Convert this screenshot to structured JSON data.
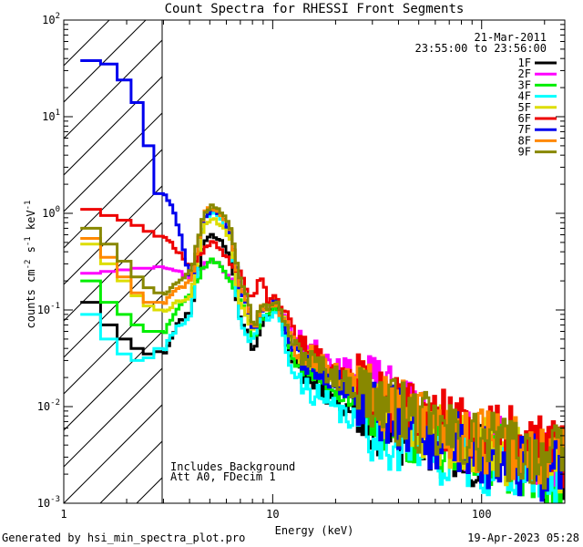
{
  "title": "Count Spectra for RHESSI Front Segments",
  "date": "21-Mar-2011",
  "time_range": "23:55:00 to 23:56:00",
  "note_line1": "Includes Background",
  "note_line2": "Att A0, FDecim 1",
  "footer_left": "Generated by hsi_min_spectra_plot.pro",
  "footer_right": "19-Apr-2023 05:28",
  "chart_data": {
    "type": "line",
    "title": "Count Spectra for RHESSI Front Segments",
    "xlabel": "Energy (keV)",
    "ylabel": "counts cm-2 s-1 keV-1",
    "xscale": "log",
    "yscale": "log",
    "xlim": [
      1,
      250
    ],
    "ylim": [
      0.001,
      100
    ],
    "x_ticks": [
      {
        "v": 1,
        "t": "1"
      },
      {
        "v": 10,
        "t": "10"
      },
      {
        "v": 100,
        "t": "100"
      }
    ],
    "y_ticks": [
      {
        "v": 0.001,
        "b": "10",
        "e": "-3"
      },
      {
        "v": 0.01,
        "b": "10",
        "e": "-2"
      },
      {
        "v": 0.1,
        "b": "10",
        "e": "-1"
      },
      {
        "v": 1,
        "b": "10",
        "e": "0"
      },
      {
        "v": 10,
        "b": "10",
        "e": "1"
      },
      {
        "v": 100,
        "b": "10",
        "e": "2"
      }
    ],
    "excluded_region_kev": [
      1,
      3
    ],
    "legend_position": "top-right",
    "series": [
      {
        "name": "1F",
        "color": "#000000",
        "low": [
          0.12,
          0.07,
          0.05,
          0.04,
          0.035,
          0.037
        ],
        "peak": 0.6,
        "base": 0.1,
        "dip": 0.035,
        "l2": 0.12,
        "tail": [
          0.025,
          0.012,
          0.006,
          0.004,
          0.003,
          0.002
        ],
        "seed": 11
      },
      {
        "name": "2F",
        "color": "#ff00ff",
        "low": [
          0.24,
          0.25,
          0.26,
          0.27,
          0.27,
          0.28
        ],
        "peak": 0.34,
        "base": 0.22,
        "dip": 0.06,
        "l2": 0.13,
        "tail": [
          0.05,
          0.028,
          0.012,
          0.006,
          0.004,
          0.003
        ],
        "seed": 23
      },
      {
        "name": "3F",
        "color": "#00ee00",
        "low": [
          0.2,
          0.12,
          0.09,
          0.07,
          0.06,
          0.06
        ],
        "peak": 0.33,
        "base": 0.15,
        "dip": 0.045,
        "l2": 0.11,
        "tail": [
          0.03,
          0.015,
          0.007,
          0.004,
          0.003,
          0.002
        ],
        "seed": 37
      },
      {
        "name": "4F",
        "color": "#00ffff",
        "low": [
          0.09,
          0.05,
          0.035,
          0.03,
          0.032,
          0.04
        ],
        "peak": 1.0,
        "base": 0.09,
        "dip": 0.05,
        "l2": 0.1,
        "tail": [
          0.02,
          0.009,
          0.005,
          0.0035,
          0.0025,
          0.002
        ],
        "seed": 41
      },
      {
        "name": "5F",
        "color": "#dddd00",
        "low": [
          0.48,
          0.3,
          0.2,
          0.14,
          0.11,
          0.1
        ],
        "peak": 0.9,
        "base": 0.14,
        "dip": 0.06,
        "l2": 0.14,
        "tail": [
          0.04,
          0.02,
          0.009,
          0.005,
          0.0035,
          0.0025
        ],
        "seed": 53
      },
      {
        "name": "6F",
        "color": "#ee0000",
        "low": [
          1.1,
          0.95,
          0.85,
          0.75,
          0.65,
          0.58
        ],
        "peak": 0.5,
        "base": 0.28,
        "dip": 0.13,
        "l2": 0.15,
        "tail": [
          0.06,
          0.022,
          0.01,
          0.007,
          0.005,
          0.003
        ],
        "seed": 67
      },
      {
        "name": "7F",
        "color": "#0000ee",
        "low": [
          38,
          35,
          24,
          14,
          5,
          1.6
        ],
        "peak": 1.1,
        "base": 0.2,
        "dip": 0.055,
        "l2": 0.13,
        "tail": [
          0.035,
          0.018,
          0.008,
          0.0045,
          0.003,
          0.002
        ],
        "seed": 79
      },
      {
        "name": "8F",
        "color": "#ff8800",
        "low": [
          0.55,
          0.35,
          0.22,
          0.15,
          0.12,
          0.12
        ],
        "peak": 1.15,
        "base": 0.2,
        "dip": 0.06,
        "l2": 0.12,
        "tail": [
          0.045,
          0.022,
          0.011,
          0.006,
          0.004,
          0.003
        ],
        "seed": 83
      },
      {
        "name": "9F",
        "color": "#888800",
        "low": [
          0.7,
          0.48,
          0.32,
          0.22,
          0.17,
          0.15
        ],
        "peak": 1.2,
        "base": 0.25,
        "dip": 0.065,
        "l2": 0.13,
        "tail": [
          0.04,
          0.02,
          0.01,
          0.0055,
          0.0038,
          0.0028
        ],
        "seed": 97
      }
    ]
  }
}
